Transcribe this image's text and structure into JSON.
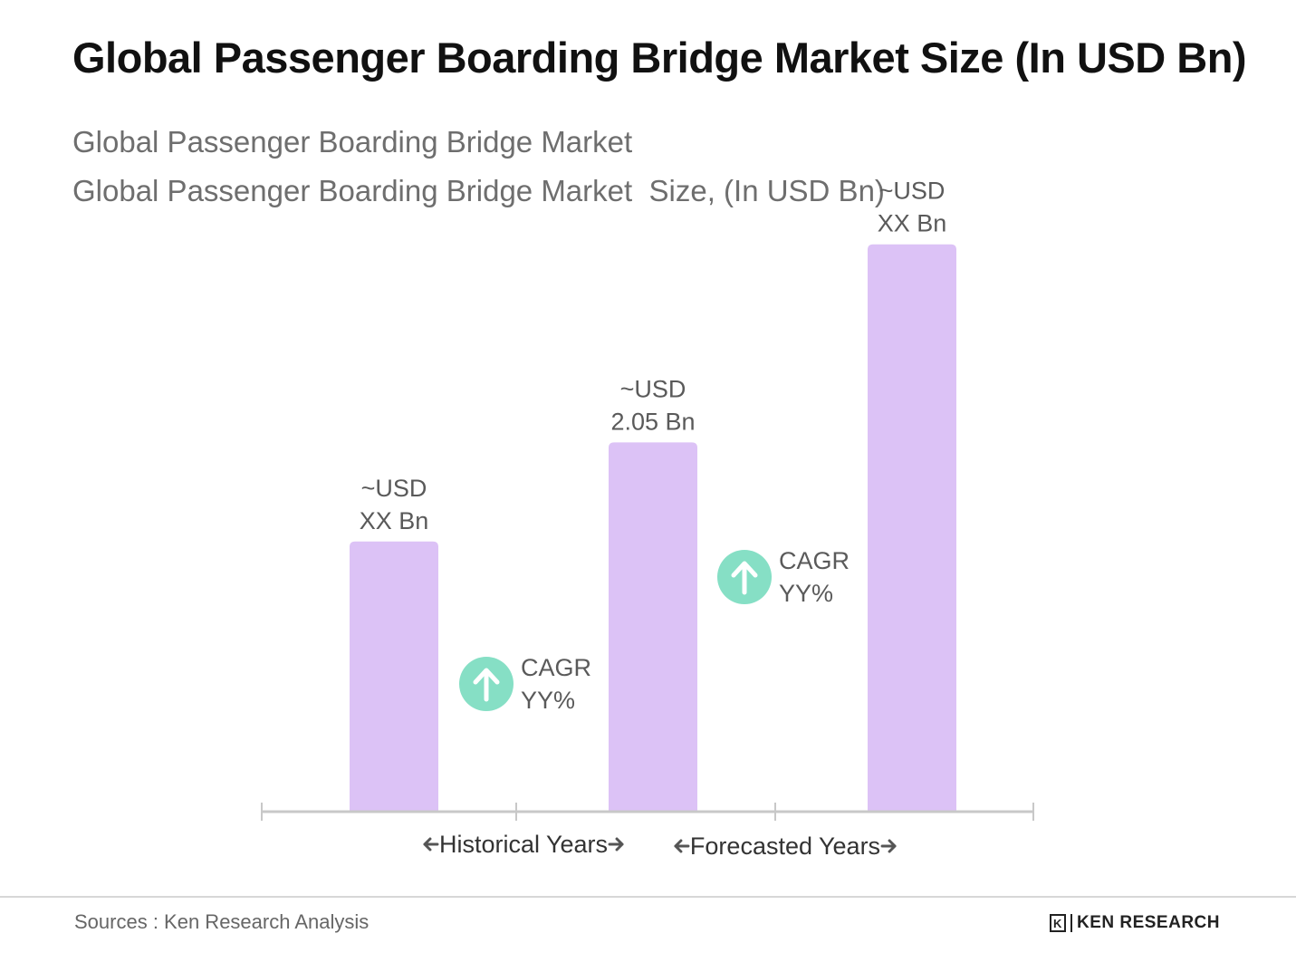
{
  "title": "Global Passenger Boarding Bridge Market Size (In USD Bn)",
  "subtitle_lines": [
    "Global Passenger Boarding Bridge Market",
    "Global Passenger Boarding Bridge Market  Size, (In USD Bn)"
  ],
  "source": "Sources : Ken Research Analysis",
  "logo": {
    "mark": "K",
    "text": "KEN RESEARCH",
    "icon": "ken-research-logo"
  },
  "colors": {
    "bar": "#dcc2f6",
    "cagr_circle": "#86dfc5",
    "axis": "#c8c8c8",
    "label": "#5a5a5a"
  },
  "chart_data": {
    "type": "bar",
    "categories": [
      "",
      "",
      ""
    ],
    "values": [
      1.5,
      2.05,
      3.15
    ],
    "value_note": "Only the middle bar is labelled with a value; others are placeholders estimated from bar height",
    "bar_labels": [
      [
        "~USD",
        "XX Bn"
      ],
      [
        "~USD",
        "2.05 Bn"
      ],
      [
        "~USD",
        "XX Bn"
      ]
    ],
    "cagr_labels": [
      {
        "between": [
          0,
          1
        ],
        "lines": [
          "CAGR",
          "YY%"
        ],
        "icon": "arrow-up-icon"
      },
      {
        "between": [
          1,
          2
        ],
        "lines": [
          "CAGR",
          "YY%"
        ],
        "icon": "arrow-up-icon"
      }
    ],
    "period_labels": [
      "Historical Years",
      "Forecasted Years"
    ],
    "ylim": [
      0,
      3.4
    ],
    "grid": false,
    "title": "",
    "xlabel": "",
    "ylabel": ""
  }
}
